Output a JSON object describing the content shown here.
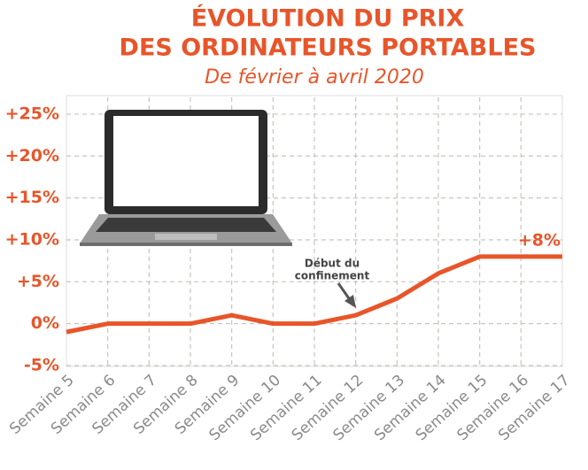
{
  "chart_data": {
    "type": "line",
    "title_lines": [
      "ÉVOLUTION DU PRIX",
      "DES ORDINATEURS PORTABLES"
    ],
    "subtitle": "De février à avril 2020",
    "annotation_lines": [
      "Début du",
      "confinement"
    ],
    "categories": [
      "Semaine 5",
      "Semaine 6",
      "Semaine 7",
      "Semaine 8",
      "Semaine 9",
      "Semaine 10",
      "Semaine 11",
      "Semaine 12",
      "Semaine 13",
      "Semaine 14",
      "Semaine 15",
      "Semaine 16",
      "Semaine 17"
    ],
    "values": [
      -1,
      0,
      0,
      0,
      1,
      0,
      0,
      1,
      3,
      6,
      8,
      8,
      8
    ],
    "value_labels": [
      null,
      null,
      null,
      null,
      null,
      null,
      null,
      null,
      null,
      null,
      null,
      null,
      "+8%"
    ],
    "color": "#e8552a",
    "ylim": [
      -5,
      27
    ],
    "yticks": [
      {
        "value": -5,
        "label": "-5%"
      },
      {
        "value": 0,
        "label": "0%"
      },
      {
        "value": 5,
        "label": "+5%"
      },
      {
        "value": 10,
        "label": "+10%"
      },
      {
        "value": 15,
        "label": "+15%"
      },
      {
        "value": 20,
        "label": "+20%"
      },
      {
        "value": 25,
        "label": "+25%"
      }
    ],
    "grid": true
  }
}
